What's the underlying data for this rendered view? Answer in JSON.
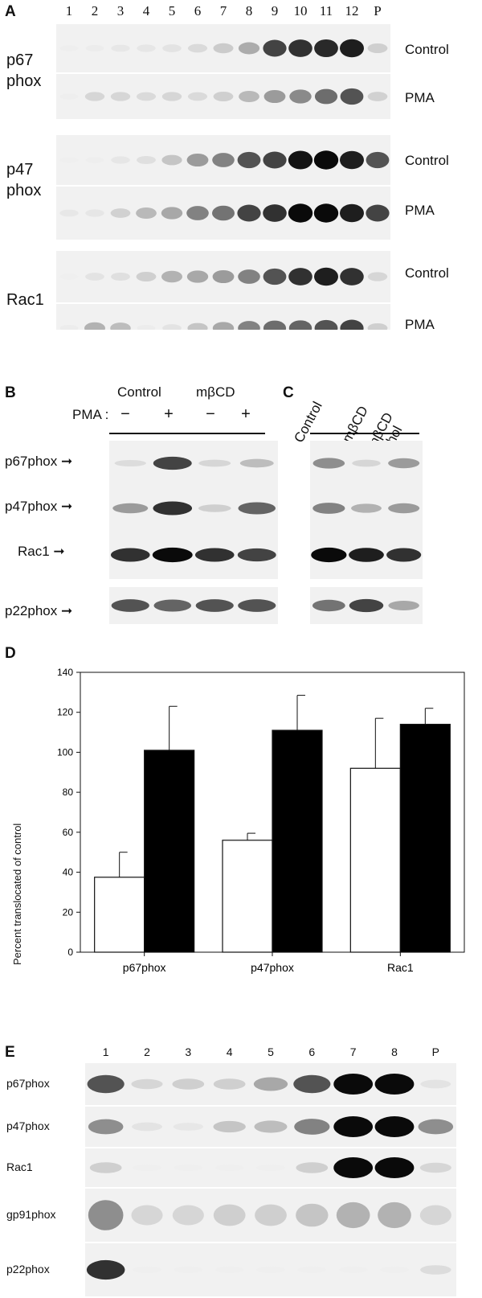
{
  "panelA": {
    "label": "A",
    "lanes": [
      "1",
      "2",
      "3",
      "4",
      "5",
      "6",
      "7",
      "8",
      "9",
      "10",
      "11",
      "12",
      "P"
    ],
    "proteins": [
      {
        "name_line1": "p67",
        "name_line2": "phox",
        "rows": [
          {
            "condition": "Control",
            "intensity": [
              0.02,
              0.05,
              0.1,
              0.12,
              0.15,
              0.22,
              0.32,
              0.48,
              0.85,
              0.9,
              0.92,
              0.95,
              0.3
            ]
          },
          {
            "condition": "PMA",
            "intensity": [
              0.02,
              0.25,
              0.25,
              0.22,
              0.25,
              0.22,
              0.3,
              0.42,
              0.55,
              0.62,
              0.72,
              0.8,
              0.28
            ]
          }
        ]
      },
      {
        "name_line1": "p47",
        "name_line2": "phox",
        "rows": [
          {
            "condition": "Control",
            "intensity": [
              0.0,
              0.02,
              0.12,
              0.18,
              0.35,
              0.55,
              0.65,
              0.8,
              0.85,
              0.98,
              1.0,
              0.95,
              0.8
            ]
          },
          {
            "condition": "PMA",
            "intensity": [
              0.1,
              0.12,
              0.28,
              0.42,
              0.5,
              0.65,
              0.7,
              0.85,
              0.9,
              1.0,
              1.0,
              0.95,
              0.85
            ]
          }
        ]
      },
      {
        "name_line1": "Rac1",
        "name_line2": "",
        "rows": [
          {
            "condition": "Control",
            "intensity": [
              0.0,
              0.15,
              0.18,
              0.3,
              0.45,
              0.5,
              0.55,
              0.65,
              0.8,
              0.9,
              0.95,
              0.9,
              0.25
            ]
          },
          {
            "condition": "PMA",
            "intensity": [
              0.05,
              0.45,
              0.4,
              0.05,
              0.15,
              0.35,
              0.5,
              0.65,
              0.72,
              0.75,
              0.8,
              0.85,
              0.3
            ]
          }
        ]
      }
    ]
  },
  "panelB": {
    "label": "B",
    "group1": "Control",
    "group2": "mβCD",
    "pma_label": "PMA :",
    "signs": [
      "−",
      "+",
      "−",
      "+"
    ],
    "rows": [
      {
        "name": "p67phox",
        "intensity": [
          0.2,
          0.85,
          0.25,
          0.4
        ]
      },
      {
        "name": "p47phox",
        "intensity": [
          0.55,
          0.9,
          0.3,
          0.75
        ]
      },
      {
        "name": "Rac1",
        "intensity": [
          0.9,
          1.0,
          0.9,
          0.85
        ]
      },
      {
        "name": "p22phox",
        "intensity": [
          0.8,
          0.75,
          0.8,
          0.8
        ]
      }
    ]
  },
  "panelC": {
    "label": "C",
    "columns": [
      "Control",
      "mβCD",
      "mβCD\nchol"
    ],
    "col1": "Control",
    "col2": "mβCD",
    "col3_line1": "mβCD",
    "col3_line2": "chol",
    "rows": [
      {
        "intensity": [
          0.6,
          0.25,
          0.55
        ]
      },
      {
        "intensity": [
          0.65,
          0.45,
          0.55
        ]
      },
      {
        "intensity": [
          1.0,
          0.95,
          0.9
        ]
      },
      {
        "intensity": [
          0.7,
          0.85,
          0.5
        ]
      }
    ]
  },
  "panelD": {
    "label": "D",
    "chart_data": {
      "type": "bar",
      "categories": [
        "p67phox",
        "p47phox",
        "Rac1"
      ],
      "series": [
        {
          "values": [
            37.5,
            56,
            92
          ],
          "errors": [
            12.5,
            3.5,
            25
          ],
          "color": "#ffffff"
        },
        {
          "values": [
            101,
            111,
            114
          ],
          "errors": [
            22,
            17.5,
            8
          ],
          "color": "#000000"
        }
      ],
      "ylabel": "Percent translocated of control",
      "ylim": [
        0,
        140
      ],
      "yticks": [
        "0",
        "20",
        "40",
        "60",
        "80",
        "100",
        "120",
        "140"
      ]
    }
  },
  "panelE": {
    "label": "E",
    "lanes": [
      "1",
      "2",
      "3",
      "4",
      "5",
      "6",
      "7",
      "8",
      "P"
    ],
    "rows": [
      {
        "name": "p67phox",
        "intensity": [
          0.8,
          0.25,
          0.3,
          0.3,
          0.5,
          0.8,
          1.0,
          1.0,
          0.15
        ]
      },
      {
        "name": "p47phox",
        "intensity": [
          0.6,
          0.15,
          0.1,
          0.35,
          0.4,
          0.65,
          1.0,
          1.0,
          0.6
        ]
      },
      {
        "name": "Rac1",
        "intensity": [
          0.3,
          0.0,
          0.0,
          0.0,
          0.0,
          0.3,
          1.0,
          1.0,
          0.25
        ]
      },
      {
        "name": "gp91phox",
        "intensity": [
          0.6,
          0.25,
          0.25,
          0.3,
          0.3,
          0.35,
          0.45,
          0.45,
          0.25
        ]
      },
      {
        "name": "p22phox",
        "intensity": [
          0.9,
          0.0,
          0.0,
          0.0,
          0.0,
          0.0,
          0.0,
          0.0,
          0.2
        ]
      }
    ]
  }
}
